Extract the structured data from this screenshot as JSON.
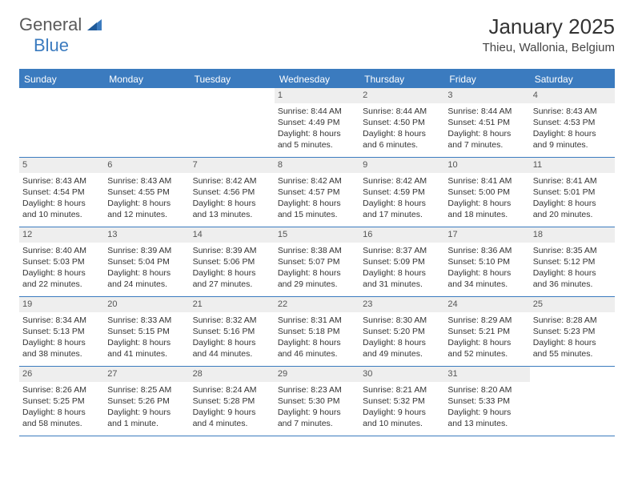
{
  "logo": {
    "word1": "General",
    "word2": "Blue"
  },
  "title": "January 2025",
  "location": "Thieu, Wallonia, Belgium",
  "colors": {
    "header_bg": "#3b7bbf",
    "header_text": "#ffffff",
    "daynum_bg": "#eeeeee",
    "border": "#3b7bbf",
    "logo_gray": "#5a5a5a",
    "logo_blue": "#3b7bbf"
  },
  "weekdays": [
    "Sunday",
    "Monday",
    "Tuesday",
    "Wednesday",
    "Thursday",
    "Friday",
    "Saturday"
  ],
  "weeks": [
    [
      {
        "n": "",
        "empty": true
      },
      {
        "n": "",
        "empty": true
      },
      {
        "n": "",
        "empty": true
      },
      {
        "n": "1",
        "sunrise": "Sunrise: 8:44 AM",
        "sunset": "Sunset: 4:49 PM",
        "daylight": "Daylight: 8 hours and 5 minutes."
      },
      {
        "n": "2",
        "sunrise": "Sunrise: 8:44 AM",
        "sunset": "Sunset: 4:50 PM",
        "daylight": "Daylight: 8 hours and 6 minutes."
      },
      {
        "n": "3",
        "sunrise": "Sunrise: 8:44 AM",
        "sunset": "Sunset: 4:51 PM",
        "daylight": "Daylight: 8 hours and 7 minutes."
      },
      {
        "n": "4",
        "sunrise": "Sunrise: 8:43 AM",
        "sunset": "Sunset: 4:53 PM",
        "daylight": "Daylight: 8 hours and 9 minutes."
      }
    ],
    [
      {
        "n": "5",
        "sunrise": "Sunrise: 8:43 AM",
        "sunset": "Sunset: 4:54 PM",
        "daylight": "Daylight: 8 hours and 10 minutes."
      },
      {
        "n": "6",
        "sunrise": "Sunrise: 8:43 AM",
        "sunset": "Sunset: 4:55 PM",
        "daylight": "Daylight: 8 hours and 12 minutes."
      },
      {
        "n": "7",
        "sunrise": "Sunrise: 8:42 AM",
        "sunset": "Sunset: 4:56 PM",
        "daylight": "Daylight: 8 hours and 13 minutes."
      },
      {
        "n": "8",
        "sunrise": "Sunrise: 8:42 AM",
        "sunset": "Sunset: 4:57 PM",
        "daylight": "Daylight: 8 hours and 15 minutes."
      },
      {
        "n": "9",
        "sunrise": "Sunrise: 8:42 AM",
        "sunset": "Sunset: 4:59 PM",
        "daylight": "Daylight: 8 hours and 17 minutes."
      },
      {
        "n": "10",
        "sunrise": "Sunrise: 8:41 AM",
        "sunset": "Sunset: 5:00 PM",
        "daylight": "Daylight: 8 hours and 18 minutes."
      },
      {
        "n": "11",
        "sunrise": "Sunrise: 8:41 AM",
        "sunset": "Sunset: 5:01 PM",
        "daylight": "Daylight: 8 hours and 20 minutes."
      }
    ],
    [
      {
        "n": "12",
        "sunrise": "Sunrise: 8:40 AM",
        "sunset": "Sunset: 5:03 PM",
        "daylight": "Daylight: 8 hours and 22 minutes."
      },
      {
        "n": "13",
        "sunrise": "Sunrise: 8:39 AM",
        "sunset": "Sunset: 5:04 PM",
        "daylight": "Daylight: 8 hours and 24 minutes."
      },
      {
        "n": "14",
        "sunrise": "Sunrise: 8:39 AM",
        "sunset": "Sunset: 5:06 PM",
        "daylight": "Daylight: 8 hours and 27 minutes."
      },
      {
        "n": "15",
        "sunrise": "Sunrise: 8:38 AM",
        "sunset": "Sunset: 5:07 PM",
        "daylight": "Daylight: 8 hours and 29 minutes."
      },
      {
        "n": "16",
        "sunrise": "Sunrise: 8:37 AM",
        "sunset": "Sunset: 5:09 PM",
        "daylight": "Daylight: 8 hours and 31 minutes."
      },
      {
        "n": "17",
        "sunrise": "Sunrise: 8:36 AM",
        "sunset": "Sunset: 5:10 PM",
        "daylight": "Daylight: 8 hours and 34 minutes."
      },
      {
        "n": "18",
        "sunrise": "Sunrise: 8:35 AM",
        "sunset": "Sunset: 5:12 PM",
        "daylight": "Daylight: 8 hours and 36 minutes."
      }
    ],
    [
      {
        "n": "19",
        "sunrise": "Sunrise: 8:34 AM",
        "sunset": "Sunset: 5:13 PM",
        "daylight": "Daylight: 8 hours and 38 minutes."
      },
      {
        "n": "20",
        "sunrise": "Sunrise: 8:33 AM",
        "sunset": "Sunset: 5:15 PM",
        "daylight": "Daylight: 8 hours and 41 minutes."
      },
      {
        "n": "21",
        "sunrise": "Sunrise: 8:32 AM",
        "sunset": "Sunset: 5:16 PM",
        "daylight": "Daylight: 8 hours and 44 minutes."
      },
      {
        "n": "22",
        "sunrise": "Sunrise: 8:31 AM",
        "sunset": "Sunset: 5:18 PM",
        "daylight": "Daylight: 8 hours and 46 minutes."
      },
      {
        "n": "23",
        "sunrise": "Sunrise: 8:30 AM",
        "sunset": "Sunset: 5:20 PM",
        "daylight": "Daylight: 8 hours and 49 minutes."
      },
      {
        "n": "24",
        "sunrise": "Sunrise: 8:29 AM",
        "sunset": "Sunset: 5:21 PM",
        "daylight": "Daylight: 8 hours and 52 minutes."
      },
      {
        "n": "25",
        "sunrise": "Sunrise: 8:28 AM",
        "sunset": "Sunset: 5:23 PM",
        "daylight": "Daylight: 8 hours and 55 minutes."
      }
    ],
    [
      {
        "n": "26",
        "sunrise": "Sunrise: 8:26 AM",
        "sunset": "Sunset: 5:25 PM",
        "daylight": "Daylight: 8 hours and 58 minutes."
      },
      {
        "n": "27",
        "sunrise": "Sunrise: 8:25 AM",
        "sunset": "Sunset: 5:26 PM",
        "daylight": "Daylight: 9 hours and 1 minute."
      },
      {
        "n": "28",
        "sunrise": "Sunrise: 8:24 AM",
        "sunset": "Sunset: 5:28 PM",
        "daylight": "Daylight: 9 hours and 4 minutes."
      },
      {
        "n": "29",
        "sunrise": "Sunrise: 8:23 AM",
        "sunset": "Sunset: 5:30 PM",
        "daylight": "Daylight: 9 hours and 7 minutes."
      },
      {
        "n": "30",
        "sunrise": "Sunrise: 8:21 AM",
        "sunset": "Sunset: 5:32 PM",
        "daylight": "Daylight: 9 hours and 10 minutes."
      },
      {
        "n": "31",
        "sunrise": "Sunrise: 8:20 AM",
        "sunset": "Sunset: 5:33 PM",
        "daylight": "Daylight: 9 hours and 13 minutes."
      },
      {
        "n": "",
        "empty": true
      }
    ]
  ]
}
